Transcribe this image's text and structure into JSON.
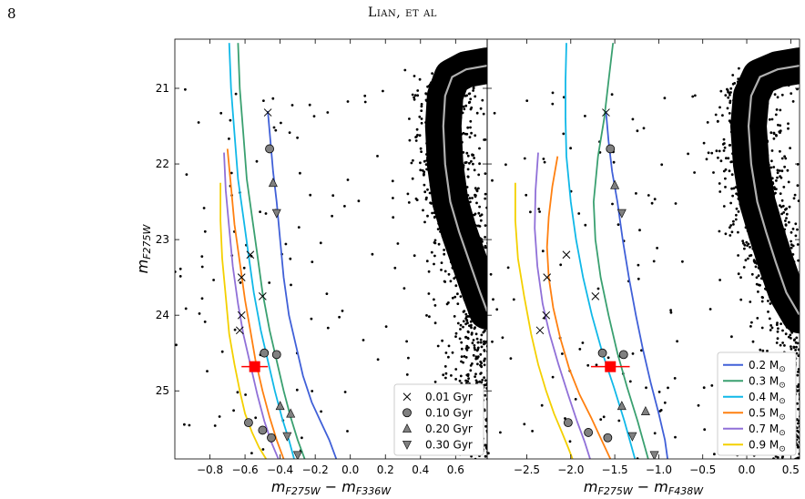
{
  "page": {
    "number": "8",
    "header": "Lian, et al"
  },
  "chart_data": [
    {
      "panel": "left",
      "type": "line",
      "xlabel": {
        "main": "m",
        "sub1": "F275W",
        "minus": " − m",
        "sub2": "F336W"
      },
      "ylabel": {
        "main": "m",
        "sub": "F275W"
      },
      "xlim": [
        -1.0,
        0.78
      ],
      "ylim": [
        25.9,
        20.35
      ],
      "xticks": [
        -0.8,
        -0.6,
        -0.4,
        -0.2,
        0.0,
        0.2,
        0.4,
        0.6
      ],
      "xtick_labels": [
        "−0.8",
        "−0.6",
        "−0.4",
        "−0.2",
        "0.0",
        "0.2",
        "0.4",
        "0.6"
      ],
      "yticks": [
        21,
        22,
        23,
        24,
        25
      ],
      "ytick_labels": [
        "21",
        "22",
        "23",
        "24",
        "25"
      ],
      "series": [
        {
          "name": "0.2",
          "color": "#4060d8",
          "x": [
            -0.47,
            -0.455,
            -0.44,
            -0.42,
            -0.4,
            -0.38,
            -0.35,
            -0.31,
            -0.27,
            -0.22,
            -0.17,
            -0.12,
            -0.08
          ],
          "y": [
            21.3,
            21.7,
            22.1,
            22.5,
            23.0,
            23.5,
            24.0,
            24.4,
            24.8,
            25.15,
            25.4,
            25.65,
            25.9
          ]
        },
        {
          "name": "0.3",
          "color": "#3aa070",
          "x": [
            -0.64,
            -0.63,
            -0.61,
            -0.59,
            -0.56,
            -0.53,
            -0.5,
            -0.46,
            -0.42,
            -0.38,
            -0.34,
            -0.3,
            -0.26
          ],
          "y": [
            20.4,
            21.0,
            21.6,
            22.2,
            22.7,
            23.2,
            23.7,
            24.2,
            24.6,
            25.0,
            25.35,
            25.65,
            25.9
          ]
        },
        {
          "name": "0.4",
          "color": "#10b8e8",
          "x": [
            -0.69,
            -0.68,
            -0.66,
            -0.64,
            -0.61,
            -0.58,
            -0.55,
            -0.51,
            -0.47,
            -0.43,
            -0.39,
            -0.35,
            -0.32
          ],
          "y": [
            20.4,
            21.0,
            21.6,
            22.2,
            22.7,
            23.2,
            23.7,
            24.2,
            24.6,
            25.0,
            25.35,
            25.65,
            25.9
          ]
        },
        {
          "name": "0.5",
          "color": "#ff8010",
          "x": [
            -0.7,
            -0.68,
            -0.66,
            -0.63,
            -0.6,
            -0.57,
            -0.54,
            -0.5,
            -0.46,
            -0.42,
            -0.38
          ],
          "y": [
            21.8,
            22.3,
            22.8,
            23.3,
            23.8,
            24.2,
            24.6,
            25.0,
            25.35,
            25.65,
            25.9
          ]
        },
        {
          "name": "0.7",
          "color": "#9070d8",
          "x": [
            -0.72,
            -0.71,
            -0.69,
            -0.67,
            -0.64,
            -0.61,
            -0.57,
            -0.53,
            -0.49,
            -0.45,
            -0.41
          ],
          "y": [
            21.85,
            22.35,
            22.85,
            23.35,
            23.85,
            24.25,
            24.65,
            25.05,
            25.4,
            25.68,
            25.9
          ]
        },
        {
          "name": "0.9",
          "color": "#f4d000",
          "x": [
            -0.74,
            -0.74,
            -0.73,
            -0.71,
            -0.69,
            -0.66,
            -0.63,
            -0.6,
            -0.56,
            -0.52,
            -0.48
          ],
          "y": [
            22.25,
            22.75,
            23.25,
            23.75,
            24.25,
            24.65,
            25.0,
            25.3,
            25.55,
            25.75,
            25.9
          ]
        }
      ],
      "markers": [
        {
          "shape": "x",
          "x": -0.47,
          "y": 21.32
        },
        {
          "shape": "o",
          "x": -0.46,
          "y": 21.8
        },
        {
          "shape": "^",
          "x": -0.44,
          "y": 22.25
        },
        {
          "shape": "v",
          "x": -0.42,
          "y": 22.65
        },
        {
          "shape": "x",
          "x": -0.57,
          "y": 23.2
        },
        {
          "shape": "x",
          "x": -0.5,
          "y": 23.75
        },
        {
          "shape": "o",
          "x": -0.49,
          "y": 24.5
        },
        {
          "shape": "^",
          "x": -0.4,
          "y": 25.2
        },
        {
          "shape": "v",
          "x": -0.36,
          "y": 25.6
        },
        {
          "shape": "x",
          "x": -0.62,
          "y": 23.5
        },
        {
          "shape": "o",
          "x": -0.42,
          "y": 24.52
        },
        {
          "shape": "^",
          "x": -0.34,
          "y": 25.3
        },
        {
          "shape": "v",
          "x": -0.3,
          "y": 25.85
        },
        {
          "shape": "x",
          "x": -0.62,
          "y": 24.0
        },
        {
          "shape": "o",
          "x": -0.45,
          "y": 25.62
        },
        {
          "shape": "x",
          "x": -0.63,
          "y": 24.2
        },
        {
          "shape": "o",
          "x": -0.58,
          "y": 25.42
        },
        {
          "shape": "o",
          "x": -0.5,
          "y": 25.52
        }
      ],
      "red_point": {
        "x": -0.545,
        "y": 24.68,
        "xerr": 0.075,
        "yerr": 0.03
      },
      "ms_ridge": {
        "x": [
          0.78,
          0.66,
          0.58,
          0.54,
          0.53,
          0.54,
          0.57,
          0.62,
          0.68,
          0.74,
          0.78
        ],
        "y": [
          20.7,
          20.75,
          20.85,
          21.1,
          21.5,
          22.0,
          22.5,
          22.9,
          23.3,
          23.7,
          23.95
        ]
      },
      "legend": {
        "position": "lower-right",
        "entries": [
          {
            "marker": "x",
            "label": "0.01 Gyr"
          },
          {
            "marker": "o",
            "label": "0.10 Gyr"
          },
          {
            "marker": "^",
            "label": "0.20 Gyr"
          },
          {
            "marker": "v",
            "label": "0.30 Gyr"
          }
        ]
      }
    },
    {
      "panel": "right",
      "type": "line",
      "xlabel": {
        "main": "m",
        "sub1": "F275W",
        "minus": " − m",
        "sub2": "F438W"
      },
      "xlim": [
        -2.95,
        0.6
      ],
      "ylim": [
        25.9,
        20.35
      ],
      "xticks": [
        -2.5,
        -2.0,
        -1.5,
        -1.0,
        -0.5,
        0.0,
        0.5
      ],
      "xtick_labels": [
        "−2.5",
        "−2.0",
        "−1.5",
        "−1.0",
        "−0.5",
        "0.0",
        "0.5"
      ],
      "yticks": [
        21,
        22,
        23,
        24,
        25
      ],
      "series": [
        {
          "name": "0.2",
          "color": "#4060d8",
          "x": [
            -1.6,
            -1.57,
            -1.53,
            -1.47,
            -1.41,
            -1.34,
            -1.26,
            -1.18,
            -1.09,
            -1.0,
            -0.93,
            -0.9
          ],
          "y": [
            21.3,
            21.7,
            22.1,
            22.5,
            23.0,
            23.5,
            24.0,
            24.45,
            24.9,
            25.3,
            25.65,
            25.9
          ]
        },
        {
          "name": "0.3",
          "color": "#3aa070",
          "x": [
            -1.52,
            -1.57,
            -1.62,
            -1.69,
            -1.74,
            -1.72,
            -1.66,
            -1.57,
            -1.47,
            -1.36,
            -1.24,
            -1.12
          ],
          "y": [
            20.4,
            20.9,
            21.4,
            21.9,
            22.5,
            23.0,
            23.5,
            24.0,
            24.5,
            24.95,
            25.4,
            25.9
          ]
        },
        {
          "name": "0.4",
          "color": "#10b8e8",
          "x": [
            -2.05,
            -2.06,
            -2.06,
            -2.05,
            -2.0,
            -1.94,
            -1.86,
            -1.76,
            -1.64,
            -1.51,
            -1.39,
            -1.27
          ],
          "y": [
            20.4,
            20.9,
            21.4,
            21.9,
            22.5,
            23.0,
            23.5,
            24.0,
            24.5,
            24.95,
            25.4,
            25.9
          ]
        },
        {
          "name": "0.5",
          "color": "#ff8010",
          "x": [
            -2.15,
            -2.21,
            -2.25,
            -2.27,
            -2.25,
            -2.2,
            -2.12,
            -2.02,
            -1.9,
            -1.77,
            -1.65,
            -1.55
          ],
          "y": [
            21.9,
            22.3,
            22.7,
            23.1,
            23.5,
            23.9,
            24.3,
            24.7,
            25.05,
            25.35,
            25.65,
            25.9
          ]
        },
        {
          "name": "0.7",
          "color": "#9070d8",
          "x": [
            -2.37,
            -2.4,
            -2.41,
            -2.38,
            -2.32,
            -2.24,
            -2.14,
            -2.03,
            -1.93,
            -1.84,
            -1.78
          ],
          "y": [
            21.85,
            22.35,
            22.85,
            23.35,
            23.85,
            24.25,
            24.65,
            25.05,
            25.4,
            25.68,
            25.9
          ]
        },
        {
          "name": "0.9",
          "color": "#f4d000",
          "x": [
            -2.63,
            -2.63,
            -2.6,
            -2.53,
            -2.45,
            -2.37,
            -2.28,
            -2.19,
            -2.1,
            -2.03,
            -1.98
          ],
          "y": [
            22.25,
            22.75,
            23.25,
            23.75,
            24.25,
            24.65,
            25.0,
            25.3,
            25.55,
            25.75,
            25.9
          ]
        }
      ],
      "markers": [
        {
          "shape": "x",
          "x": -1.6,
          "y": 21.32
        },
        {
          "shape": "o",
          "x": -1.55,
          "y": 21.8
        },
        {
          "shape": "^",
          "x": -1.5,
          "y": 22.28
        },
        {
          "shape": "v",
          "x": -1.42,
          "y": 22.65
        },
        {
          "shape": "x",
          "x": -2.05,
          "y": 23.2
        },
        {
          "shape": "x",
          "x": -2.27,
          "y": 23.5
        },
        {
          "shape": "x",
          "x": -2.28,
          "y": 24.0
        },
        {
          "shape": "x",
          "x": -2.35,
          "y": 24.2
        },
        {
          "shape": "x",
          "x": -1.72,
          "y": 23.75
        },
        {
          "shape": "o",
          "x": -1.64,
          "y": 24.5
        },
        {
          "shape": "o",
          "x": -1.4,
          "y": 24.52
        },
        {
          "shape": "^",
          "x": -1.42,
          "y": 25.2
        },
        {
          "shape": "^",
          "x": -1.15,
          "y": 25.27
        },
        {
          "shape": "o",
          "x": -2.03,
          "y": 25.42
        },
        {
          "shape": "o",
          "x": -1.8,
          "y": 25.55
        },
        {
          "shape": "o",
          "x": -1.58,
          "y": 25.62
        },
        {
          "shape": "v",
          "x": -1.3,
          "y": 25.6
        },
        {
          "shape": "v",
          "x": -1.05,
          "y": 25.85
        }
      ],
      "red_point": {
        "x": -1.55,
        "y": 24.68,
        "xerr": 0.22,
        "yerr": 0.03
      },
      "ms_ridge": {
        "x": [
          0.6,
          0.35,
          0.15,
          0.05,
          0.02,
          0.05,
          0.12,
          0.22,
          0.33,
          0.45,
          0.6
        ],
        "y": [
          20.7,
          20.75,
          20.85,
          21.1,
          21.5,
          22.0,
          22.5,
          22.9,
          23.3,
          23.7,
          24.0
        ]
      },
      "legend": {
        "position": "lower-right",
        "entries": [
          {
            "color": "#4060d8",
            "label": "0.2 M",
            "sub": "⊙"
          },
          {
            "color": "#3aa070",
            "label": "0.3 M",
            "sub": "⊙"
          },
          {
            "color": "#10b8e8",
            "label": "0.4 M",
            "sub": "⊙"
          },
          {
            "color": "#ff8010",
            "label": "0.5 M",
            "sub": "⊙"
          },
          {
            "color": "#9070d8",
            "label": "0.7 M",
            "sub": "⊙"
          },
          {
            "color": "#f4d000",
            "label": "0.9 M",
            "sub": "⊙"
          }
        ]
      }
    }
  ]
}
